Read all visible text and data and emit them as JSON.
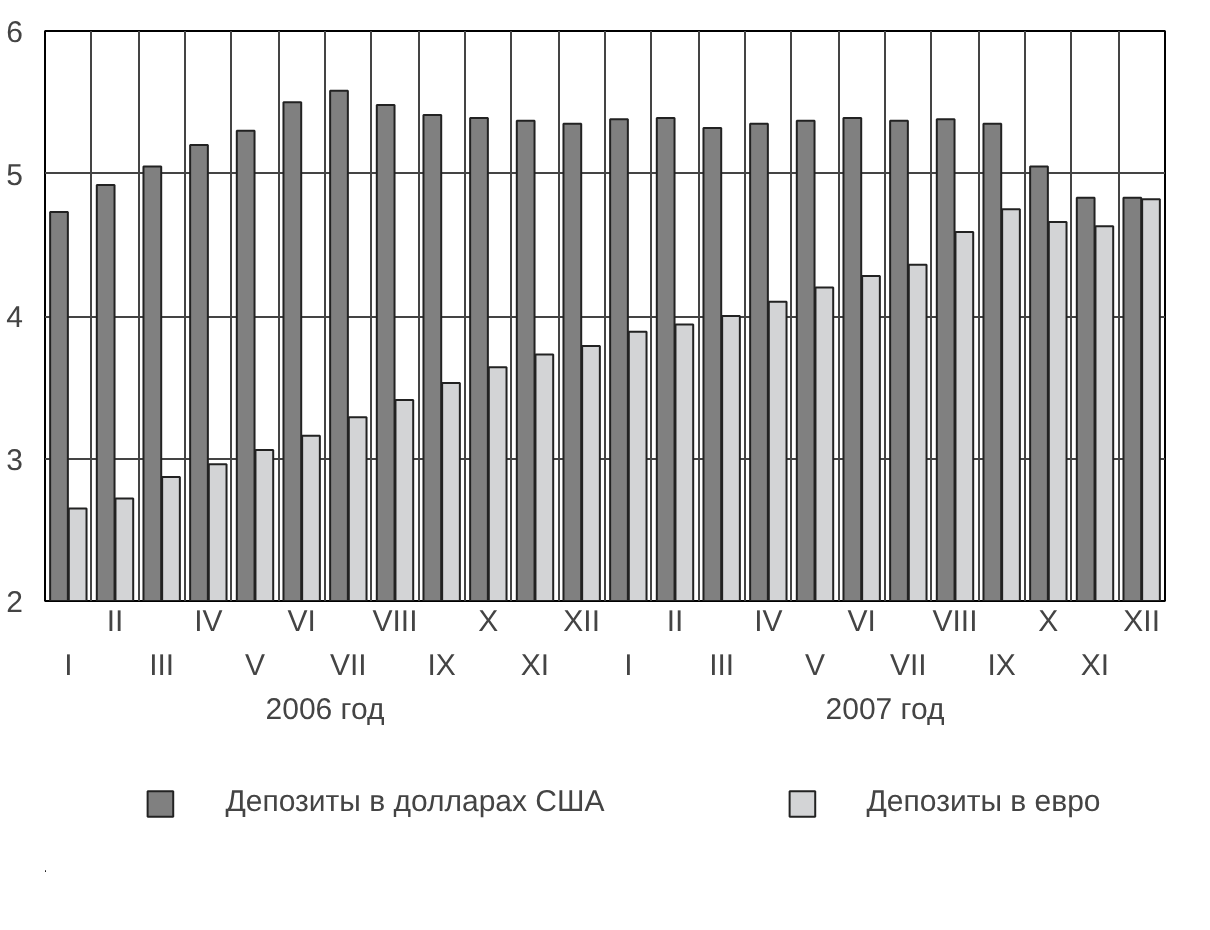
{
  "chart_data": {
    "type": "bar",
    "categories": [
      "I",
      "II",
      "III",
      "IV",
      "V",
      "VI",
      "VII",
      "VIII",
      "IX",
      "X",
      "XI",
      "XII",
      "I",
      "II",
      "III",
      "IV",
      "V",
      "VI",
      "VII",
      "VIII",
      "IX",
      "X",
      "XI",
      "XII"
    ],
    "series": [
      {
        "name": "Депозиты в долларах США",
        "color": "#808080",
        "values": [
          4.73,
          4.92,
          5.05,
          5.2,
          5.3,
          5.5,
          5.58,
          5.48,
          5.41,
          5.39,
          5.37,
          5.35,
          5.38,
          5.39,
          5.32,
          5.35,
          5.37,
          5.39,
          5.37,
          5.38,
          5.35,
          5.05,
          4.83,
          4.83
        ]
      },
      {
        "name": "Депозиты в евро",
        "color": "#d3d4d6",
        "values": [
          2.65,
          2.72,
          2.87,
          2.96,
          3.06,
          3.16,
          3.29,
          3.41,
          3.53,
          3.64,
          3.73,
          3.79,
          3.89,
          3.94,
          4.0,
          4.1,
          4.2,
          4.28,
          4.36,
          4.59,
          4.75,
          4.66,
          4.63,
          4.82
        ]
      }
    ],
    "ylim": [
      2,
      6
    ],
    "yticks": [
      2,
      3,
      4,
      5,
      6
    ],
    "grid": true,
    "legend": "bottom",
    "annotations": [
      "2006 год",
      "2007 год"
    ]
  }
}
